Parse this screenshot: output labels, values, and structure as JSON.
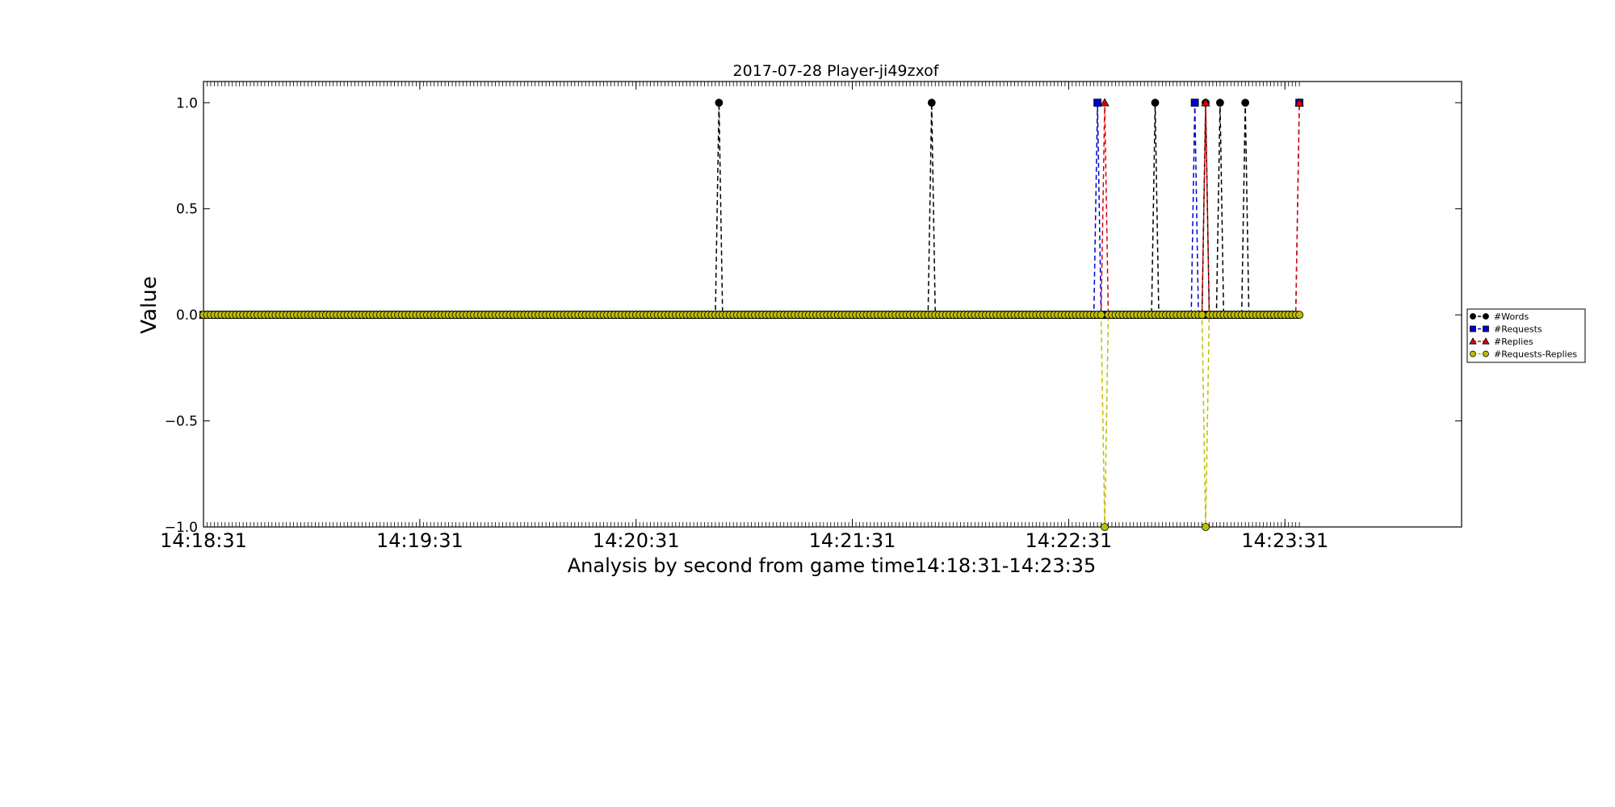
{
  "chart_data": {
    "type": "line",
    "title": "2017-07-28 Player-ji49zxof",
    "xlabel": "Analysis by second from game time14:18:31-14:23:35",
    "ylabel": "Value",
    "x_range_seconds": [
      "14:18:31",
      "14:23:35"
    ],
    "xlim": [
      "14:18:31",
      "14:24:20"
    ],
    "ylim": [
      -1.0,
      1.1
    ],
    "x_ticks": [
      "14:18:31",
      "14:19:31",
      "14:20:31",
      "14:21:31",
      "14:22:31",
      "14:23:31"
    ],
    "y_ticks": [
      {
        "value": 1.0,
        "label": "1.0"
      },
      {
        "value": 0.5,
        "label": "0.5"
      },
      {
        "value": 0.0,
        "label": "0.0"
      },
      {
        "value": -0.5,
        "label": "−0.5"
      },
      {
        "value": -1.0,
        "label": "−1.0"
      }
    ],
    "grid": false,
    "legend_position": "right, outside plot",
    "baseline_value": 0,
    "series": [
      {
        "name": "#Words",
        "color": "#000000",
        "marker": "circle",
        "nonzero": [
          {
            "time": "14:20:54",
            "value": 1
          },
          {
            "time": "14:21:53",
            "value": 1
          },
          {
            "time": "14:22:55",
            "value": 1
          },
          {
            "time": "14:23:09",
            "value": 1
          },
          {
            "time": "14:23:13",
            "value": 1
          },
          {
            "time": "14:23:20",
            "value": 1
          }
        ]
      },
      {
        "name": "#Requests",
        "color": "#0000cc",
        "marker": "square",
        "nonzero": [
          {
            "time": "14:22:39",
            "value": 1
          },
          {
            "time": "14:23:06",
            "value": 1
          },
          {
            "time": "14:23:35",
            "value": 1
          }
        ]
      },
      {
        "name": "#Replies",
        "color": "#dd0000",
        "marker": "triangle",
        "nonzero": [
          {
            "time": "14:22:41",
            "value": 1
          },
          {
            "time": "14:23:09",
            "value": 1
          },
          {
            "time": "14:23:35",
            "value": 1
          }
        ]
      },
      {
        "name": "#Requests-Replies",
        "color": "#bfbf00",
        "marker": "circle",
        "nonzero": [
          {
            "time": "14:22:41",
            "value": -1
          },
          {
            "time": "14:23:09",
            "value": -1
          }
        ]
      }
    ]
  }
}
